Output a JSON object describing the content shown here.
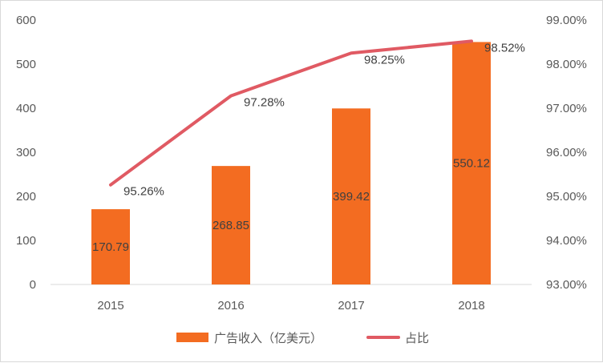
{
  "chart_data": {
    "type": "bar",
    "categories": [
      "2015",
      "2016",
      "2017",
      "2018"
    ],
    "series": [
      {
        "name": "广告收入（亿美元）",
        "kind": "bar",
        "axis": "left",
        "values": [
          170.79,
          268.85,
          399.42,
          550.12
        ],
        "labels": [
          "170.79",
          "268.85",
          "399.42",
          "550.12"
        ],
        "color": "#F36C21"
      },
      {
        "name": "占比",
        "kind": "line",
        "axis": "right",
        "values": [
          95.26,
          97.28,
          98.25,
          98.52
        ],
        "labels": [
          "95.26%",
          "97.28%",
          "98.25%",
          "98.52%"
        ],
        "color": "#E05A63"
      }
    ],
    "y_left": {
      "range": [
        0,
        600
      ],
      "ticks": [
        "0",
        "100",
        "200",
        "300",
        "400",
        "500",
        "600"
      ]
    },
    "y_right": {
      "range": [
        93,
        99
      ],
      "ticks": [
        "93.00%",
        "94.00%",
        "95.00%",
        "96.00%",
        "97.00%",
        "98.00%",
        "99.00%"
      ]
    },
    "grid": false,
    "legend": "bottom"
  }
}
